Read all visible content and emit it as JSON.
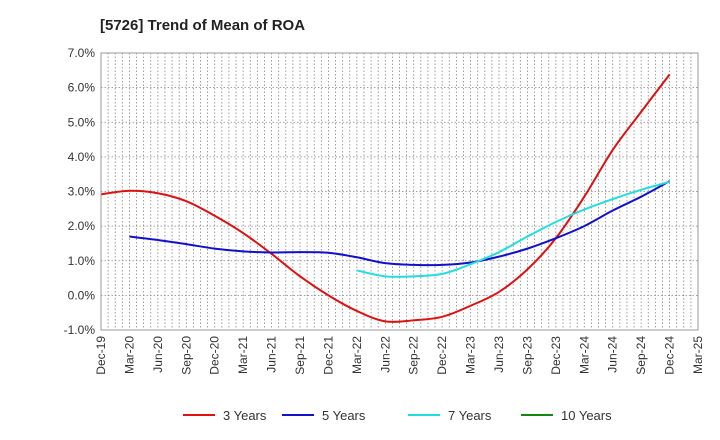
{
  "chart_data": {
    "type": "line",
    "title": "[5726]  Trend of Mean of ROA",
    "xlabel": "",
    "ylabel": "",
    "ylim": [
      -1.0,
      7.0
    ],
    "y_ticks": [
      "-1.0%",
      "0.0%",
      "1.0%",
      "2.0%",
      "3.0%",
      "4.0%",
      "5.0%",
      "6.0%",
      "7.0%"
    ],
    "y_tick_values": [
      -1,
      0,
      1,
      2,
      3,
      4,
      5,
      6,
      7
    ],
    "categories": [
      "Dec-19",
      "Mar-20",
      "Jun-20",
      "Sep-20",
      "Dec-20",
      "Mar-21",
      "Jun-21",
      "Sep-21",
      "Dec-21",
      "Mar-22",
      "Jun-22",
      "Sep-22",
      "Dec-22",
      "Mar-23",
      "Jun-23",
      "Sep-23",
      "Dec-23",
      "Mar-24",
      "Jun-24",
      "Sep-24",
      "Dec-24",
      "Mar-25"
    ],
    "grid": true,
    "legend_position": "bottom",
    "series": [
      {
        "name": "3 Years",
        "color": "#dd1111",
        "values": [
          2.92,
          3.02,
          2.95,
          2.72,
          2.3,
          1.8,
          1.2,
          0.55,
          0.0,
          -0.45,
          -0.75,
          -0.72,
          -0.62,
          -0.3,
          0.1,
          0.75,
          1.65,
          2.85,
          4.2,
          5.3,
          6.38,
          null
        ]
      },
      {
        "name": "5 Years",
        "color": "#1111cc",
        "values": [
          null,
          1.7,
          1.6,
          1.48,
          1.35,
          1.27,
          1.24,
          1.25,
          1.23,
          1.1,
          0.93,
          0.88,
          0.88,
          0.95,
          1.12,
          1.35,
          1.65,
          2.0,
          2.45,
          2.85,
          3.3,
          null
        ]
      },
      {
        "name": "7 Years",
        "color": "#22dddd",
        "values": [
          null,
          null,
          null,
          null,
          null,
          null,
          null,
          null,
          null,
          0.72,
          0.55,
          0.55,
          0.62,
          0.9,
          1.25,
          1.7,
          2.12,
          2.48,
          2.78,
          3.05,
          3.28,
          null
        ]
      },
      {
        "name": "10 Years",
        "color": "#118811",
        "values": [
          null,
          null,
          null,
          null,
          null,
          null,
          null,
          null,
          null,
          null,
          null,
          null,
          null,
          null,
          null,
          null,
          null,
          null,
          null,
          null,
          null,
          null
        ]
      }
    ]
  }
}
